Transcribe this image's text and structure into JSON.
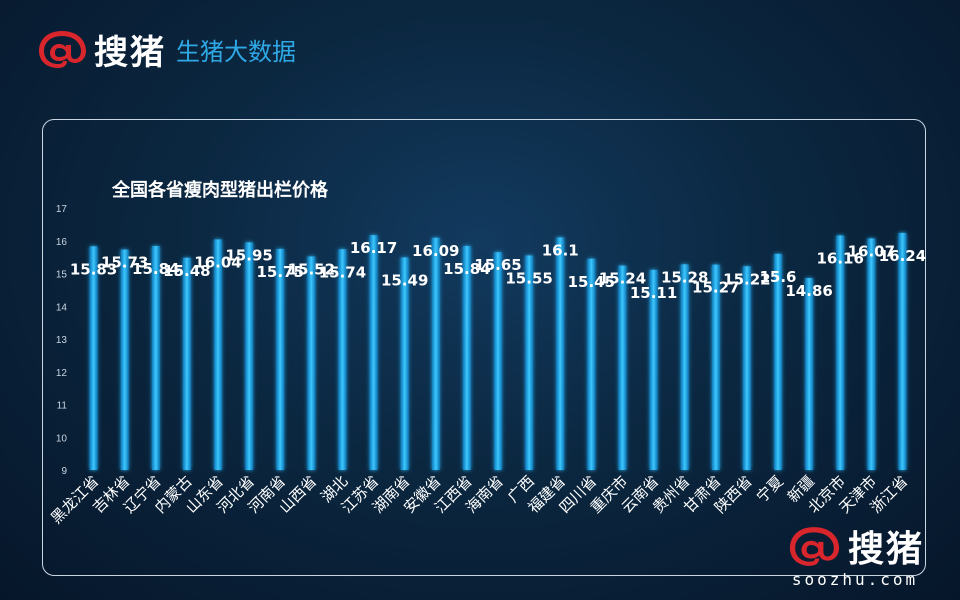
{
  "header": {
    "logo_text": "搜猪",
    "subtitle": "生猪大数据"
  },
  "watermark": {
    "logo_text": "搜猪",
    "url": "soozhu.com"
  },
  "colors": {
    "background": "#0b2740",
    "bar": "#1fa7ea",
    "bar_glow": "#29c6ff",
    "brand_red": "#d8262c",
    "brand_blue": "#2fa8e6"
  },
  "chart_data": {
    "type": "bar",
    "title": "全国各省瘦肉型猪出栏价格",
    "xlabel": "",
    "ylabel": "",
    "ylim": [
      9,
      17
    ],
    "yticks": [
      9,
      10,
      11,
      12,
      13,
      14,
      15,
      16,
      17
    ],
    "grid": false,
    "categories": [
      "黑龙江省",
      "吉林省",
      "辽宁省",
      "内蒙古",
      "山东省",
      "河北省",
      "河南省",
      "山西省",
      "湖北",
      "江苏省",
      "湖南省",
      "安徽省",
      "江西省",
      "海南省",
      "广西",
      "福建省",
      "四川省",
      "重庆市",
      "云南省",
      "贵州省",
      "甘肃省",
      "陕西省",
      "宁夏",
      "新疆",
      "北京市",
      "天津市",
      "浙江省"
    ],
    "values": [
      15.83,
      15.73,
      15.84,
      15.48,
      16.04,
      15.95,
      15.75,
      15.52,
      15.74,
      16.17,
      15.49,
      16.09,
      15.84,
      15.65,
      15.55,
      16.1,
      15.45,
      15.24,
      15.11,
      15.28,
      15.27,
      15.22,
      15.6,
      14.86,
      16.16,
      16.07,
      16.24
    ]
  }
}
